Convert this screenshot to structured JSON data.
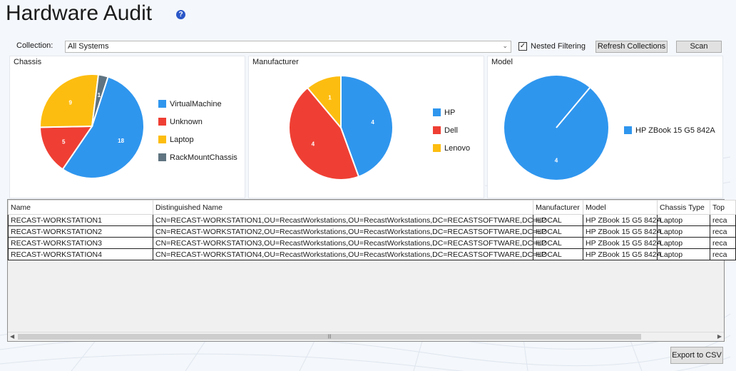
{
  "page": {
    "title": "Hardware Audit"
  },
  "toolbar": {
    "collection_label": "Collection:",
    "collection_value": "All Systems",
    "nested_filtering_label": "Nested Filtering",
    "nested_filtering_checked": true,
    "refresh_label": "Refresh Collections",
    "scan_label": "Scan"
  },
  "icons": {
    "help": "question-mark-icon",
    "dropdown": "chevron-down-icon",
    "checkmark": "checkmark-icon"
  },
  "panels": {
    "chassis": {
      "title": "Chassis",
      "legend": [
        "VirtualMachine",
        "Unknown",
        "Laptop",
        "RackMountChassis"
      ],
      "colors": [
        "#2f96ee",
        "#ef3f34",
        "#fdbd10",
        "#5f7480"
      ]
    },
    "manufacturer": {
      "title": "Manufacturer",
      "legend": [
        "HP",
        "Dell",
        "Lenovo"
      ],
      "colors": [
        "#2f96ee",
        "#ef3f34",
        "#fdbd10"
      ]
    },
    "model": {
      "title": "Model",
      "legend": [
        "HP ZBook 15 G5 842A"
      ],
      "colors": [
        "#2f96ee"
      ]
    }
  },
  "chart_data": [
    {
      "type": "pie",
      "title": "Chassis",
      "categories": [
        "VirtualMachine",
        "Unknown",
        "Laptop",
        "RackMountChassis"
      ],
      "values": [
        18,
        5,
        9,
        1
      ],
      "legend": "right"
    },
    {
      "type": "pie",
      "title": "Manufacturer",
      "categories": [
        "HP",
        "Dell",
        "Lenovo"
      ],
      "values": [
        4,
        4,
        1
      ],
      "legend": "right"
    },
    {
      "type": "pie",
      "title": "Model",
      "categories": [
        "HP ZBook 15 G5 842A"
      ],
      "values": [
        4
      ],
      "legend": "right"
    }
  ],
  "table": {
    "columns": [
      "Name",
      "Distinguished Name",
      "Manufacturer",
      "Model",
      "Chassis Type",
      "Top"
    ],
    "rows": [
      [
        "RECAST-WORKSTATION1",
        "CN=RECAST-WORKSTATION1,OU=RecastWorkstations,OU=RecastWorkstations,DC=RECASTSOFTWARE,DC=LOCAL",
        "HP",
        "HP ZBook 15 G5 842A",
        "Laptop",
        "reca"
      ],
      [
        "RECAST-WORKSTATION2",
        "CN=RECAST-WORKSTATION2,OU=RecastWorkstations,OU=RecastWorkstations,DC=RECASTSOFTWARE,DC=LOCAL",
        "HP",
        "HP ZBook 15 G5 842A",
        "Laptop",
        "reca"
      ],
      [
        "RECAST-WORKSTATION3",
        "CN=RECAST-WORKSTATION3,OU=RecastWorkstations,OU=RecastWorkstations,DC=RECASTSOFTWARE,DC=LOCAL",
        "HP",
        "HP ZBook 15 G5 842A",
        "Laptop",
        "reca"
      ],
      [
        "RECAST-WORKSTATION4",
        "CN=RECAST-WORKSTATION4,OU=RecastWorkstations,OU=RecastWorkstations,DC=RECASTSOFTWARE,DC=LOCAL",
        "HP",
        "HP ZBook 15 G5 842A",
        "Laptop",
        "reca"
      ]
    ]
  },
  "footer": {
    "export_label": "Export to CSV"
  }
}
